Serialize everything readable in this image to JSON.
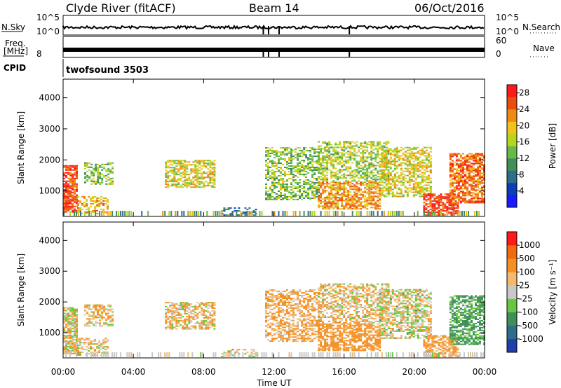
{
  "header": {
    "station": "Clyde River (fitACF)",
    "beam": "Beam 14",
    "date": "06/Oct/2016"
  },
  "strip": {
    "nsky_label": "N.Sky",
    "nsky_ticks": [
      "10^5",
      "10^0"
    ],
    "nsearch_label": "N.Search",
    "freq_label_line1": "Freq.",
    "freq_label_line2": "[MHz]",
    "freq_ticks": [
      "8"
    ],
    "nave_label": "Nave",
    "nave_ticks": [
      "60",
      "0"
    ],
    "cpid_label": "CPID",
    "cpid_value": "twofsound 3503"
  },
  "x_axis": {
    "title": "Time UT",
    "ticks": [
      "00:00",
      "04:00",
      "08:00",
      "12:00",
      "16:00",
      "20:00",
      "00:00"
    ],
    "range_hours": [
      0,
      24
    ]
  },
  "chart_data": [
    {
      "type": "heatmap",
      "quantity": "Power",
      "ylabel": "Slant Range [km]",
      "ylim": [
        180,
        4600
      ],
      "yticks": [
        1000,
        2000,
        3000,
        4000
      ],
      "colorbar_label": "Power [dB]",
      "colorbar_ticks": [
        "4",
        "8",
        "12",
        "16",
        "20",
        "24",
        "28"
      ],
      "colorbar_range": [
        0,
        30
      ],
      "colormap": [
        "#1a1aff",
        "#0b3fb5",
        "#2f6d8a",
        "#3f8f5a",
        "#66b94a",
        "#b6d61e",
        "#f2c21a",
        "#f08a12",
        "#e84e10",
        "#ff1a1a"
      ],
      "grid": false
    },
    {
      "type": "heatmap",
      "quantity": "Velocity",
      "ylabel": "Slant Range [km]",
      "ylim": [
        180,
        4600
      ],
      "yticks": [
        1000,
        2000,
        3000,
        4000
      ],
      "colorbar_label": "Velocity [m s⁻¹]",
      "colorbar_ticks": [
        "1000",
        "500",
        "100",
        "25",
        "-25",
        "-100",
        "-500",
        "-1000"
      ],
      "colormap": [
        "#1f3faa",
        "#2f6d8a",
        "#3f8f5a",
        "#66c840",
        "#c8c8c8",
        "#f6b86a",
        "#f39024",
        "#f06a10",
        "#ff1a1a"
      ],
      "grid": false
    }
  ]
}
